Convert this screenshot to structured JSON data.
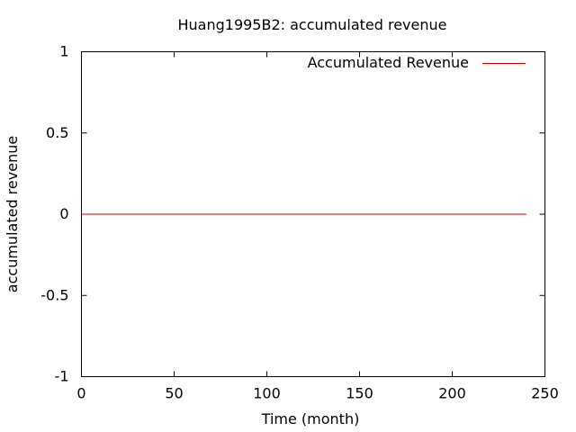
{
  "chart_data": {
    "type": "line",
    "title": "Huang1995B2: accumulated revenue",
    "xlabel": "Time (month)",
    "ylabel": "accumulated revenue",
    "xlim": [
      0,
      250
    ],
    "ylim": [
      -1,
      1
    ],
    "xticks": [
      0,
      50,
      100,
      150,
      200,
      250
    ],
    "xtick_labels": [
      "0",
      "50",
      "100",
      "150",
      "200",
      "250"
    ],
    "yticks": [
      1,
      0.5,
      0,
      -0.5,
      -1
    ],
    "ytick_labels": [
      "1",
      "0.5",
      "0",
      "-0.5",
      "-1"
    ],
    "grid": false,
    "legend_position": "top-right",
    "series": [
      {
        "name": "Accumulated Revenue",
        "color": "#cc0000",
        "x": [
          0,
          240
        ],
        "y": [
          0,
          0
        ]
      }
    ]
  }
}
